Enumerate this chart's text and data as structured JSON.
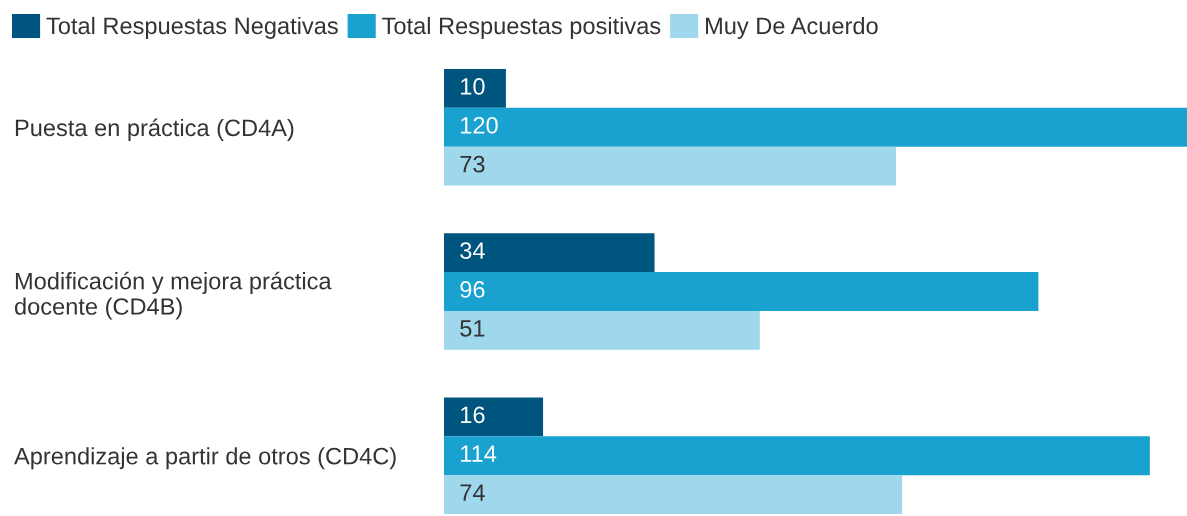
{
  "chart_data": {
    "type": "bar",
    "orientation": "horizontal",
    "categories": [
      "Puesta en práctica (CD4A)",
      "Modificación y mejora práctica docente (CD4B)",
      "Aprendizaje a partir de otros (CD4C)"
    ],
    "series": [
      {
        "name": "Total Respuestas Negativas",
        "color": "#00557f",
        "values": [
          10,
          34,
          16
        ]
      },
      {
        "name": "Total Respuestas positivas",
        "color": "#19a2cf",
        "values": [
          120,
          96,
          114
        ]
      },
      {
        "name": "Muy De Acuerdo",
        "color": "#9fd7ed",
        "values": [
          73,
          51,
          74
        ]
      }
    ],
    "data_labels": true,
    "legend": "top left",
    "tick_labels": "y"
  }
}
